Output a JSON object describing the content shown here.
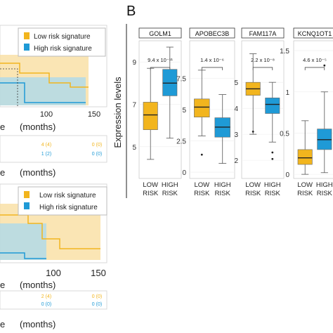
{
  "left": {
    "top_plot": {
      "legend": {
        "low": "Low risk signature",
        "high": "High risk signature"
      },
      "x_ticks": [
        "100",
        "150"
      ],
      "xlabel_fragment": "e",
      "xlabel_unit": "(months)"
    },
    "top_table": {
      "row_low": [
        "4 (4)",
        "0 (0)"
      ],
      "row_high": [
        "1 (2)",
        "0 (0)"
      ],
      "xlabel_fragment": "e",
      "xlabel_unit": "(months)"
    },
    "bottom_plot": {
      "legend": {
        "low": "Low risk signature",
        "high": "High risk signature"
      },
      "x_ticks": [
        "100",
        "150"
      ],
      "xlabel_fragment": "e",
      "xlabel_unit": "(months)"
    },
    "bottom_table": {
      "row_low": [
        "2 (4)",
        "0 (0)"
      ],
      "row_high": [
        "0 (0)",
        "0 (0)"
      ],
      "xlabel_fragment": "e",
      "xlabel_unit": "(months)"
    }
  },
  "panel_letter": "B",
  "colors": {
    "low": "#f2b51e",
    "high": "#1f9ad6",
    "low_fill": "#f8dc9b",
    "high_fill": "#a8d8ef"
  },
  "chart_data": [
    {
      "type": "box",
      "title": "GOLM1",
      "ylabel": "Expression levels",
      "categories": [
        "LOW RISK",
        "HIGH RISK"
      ],
      "y_ticks": [
        "9",
        "7",
        "5"
      ],
      "ylim": [
        3.5,
        10.0
      ],
      "pvalue": "9.4 x 10⁻¹¹",
      "boxes": [
        {
          "category": "LOW RISK",
          "min": 4.4,
          "q1": 5.8,
          "median": 6.5,
          "q3": 7.1,
          "max": 8.7,
          "outliers": []
        },
        {
          "category": "HIGH RISK",
          "min": 5.4,
          "q1": 7.4,
          "median": 8.0,
          "q3": 8.65,
          "max": 9.7,
          "outliers": []
        }
      ]
    },
    {
      "type": "box",
      "title": "APOBEC3B",
      "categories": [
        "LOW RISK",
        "HIGH RISK"
      ],
      "y_ticks": [
        "7.5",
        "5",
        "2.5",
        "0"
      ],
      "ylim": [
        -0.5,
        10.5
      ],
      "pvalue": "1.4 x 10⁻⁶",
      "boxes": [
        {
          "category": "LOW RISK",
          "min": 2.9,
          "q1": 4.4,
          "median": 5.2,
          "q3": 5.85,
          "max": 8.15,
          "outliers": [
            1.4
          ]
        },
        {
          "category": "HIGH RISK",
          "min": 0.7,
          "q1": 2.8,
          "median": 3.6,
          "q3": 4.35,
          "max": 6.2,
          "outliers": []
        }
      ]
    },
    {
      "type": "box",
      "title": "FAM117A",
      "categories": [
        "LOW RISK",
        "HIGH RISK"
      ],
      "y_ticks": [
        "5",
        "4",
        "3",
        "2"
      ],
      "ylim": [
        1.3,
        6.6
      ],
      "pvalue": "2.2 x 10⁻⁸",
      "boxes": [
        {
          "category": "LOW RISK",
          "min": 3.0,
          "q1": 4.5,
          "median": 4.75,
          "q3": 5.0,
          "max": 6.1,
          "outliers": [
            3.1
          ]
        },
        {
          "category": "HIGH RISK",
          "min": 2.7,
          "q1": 3.8,
          "median": 4.15,
          "q3": 4.4,
          "max": 5.0,
          "outliers": [
            2.3,
            2.05
          ]
        }
      ]
    },
    {
      "type": "box",
      "title": "KCNQ1OT1",
      "categories": [
        "LOW RISK",
        "HIGH RISK"
      ],
      "y_ticks": [
        "1.5",
        "1",
        "0.5",
        "0"
      ],
      "ylim": [
        -0.05,
        1.62
      ],
      "pvalue": "4.6 x 10⁻⁵",
      "boxes": [
        {
          "category": "LOW RISK",
          "min": 0.0,
          "q1": 0.12,
          "median": 0.2,
          "q3": 0.3,
          "max": 0.65,
          "outliers": []
        },
        {
          "category": "HIGH RISK",
          "min": 0.02,
          "q1": 0.3,
          "median": 0.42,
          "q3": 0.55,
          "max": 1.0,
          "outliers": [
            1.32
          ]
        }
      ]
    }
  ]
}
